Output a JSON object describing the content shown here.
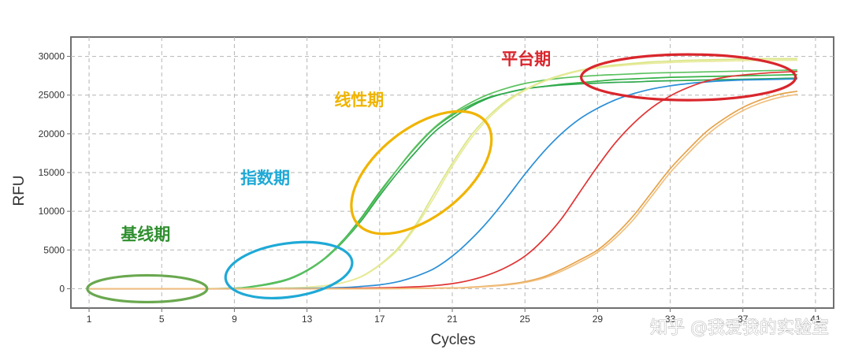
{
  "chart_data": {
    "type": "line",
    "xlabel": "Cycles",
    "ylabel": "RFU",
    "xlim": [
      0,
      42
    ],
    "ylim": [
      -2500,
      32500
    ],
    "x_ticks": [
      1,
      5,
      9,
      13,
      17,
      21,
      25,
      29,
      33,
      37,
      41
    ],
    "y_ticks": [
      0,
      5000,
      10000,
      15000,
      20000,
      25000,
      30000
    ],
    "grid": true,
    "series": [
      {
        "color": "#35b247",
        "x": [
          1,
          3,
          5,
          7,
          9,
          10,
          11,
          12,
          13,
          14,
          15,
          16,
          17,
          18,
          19,
          20,
          21,
          22,
          23,
          24,
          25,
          26,
          27,
          28,
          29,
          30,
          31,
          32,
          33,
          34,
          35,
          36,
          37,
          38,
          39,
          40
        ],
        "y": [
          0,
          0,
          0,
          0,
          50,
          300,
          700,
          1300,
          2400,
          4000,
          6300,
          9200,
          12500,
          15500,
          18300,
          20700,
          22400,
          23700,
          24700,
          25300,
          25800,
          26100,
          26400,
          26600,
          26800,
          27000,
          27100,
          27200,
          27300,
          27350,
          27400,
          27450,
          27500,
          27550,
          27600,
          27650
        ]
      },
      {
        "color": "#2fa84f",
        "x": [
          1,
          3,
          5,
          7,
          9,
          10,
          11,
          12,
          13,
          14,
          15,
          16,
          17,
          18,
          19,
          20,
          21,
          22,
          23,
          24,
          25,
          26,
          27,
          28,
          29,
          30,
          31,
          32,
          33,
          34,
          35,
          36,
          37,
          38,
          39,
          40
        ],
        "y": [
          0,
          0,
          0,
          0,
          40,
          250,
          600,
          1200,
          2300,
          3900,
          6100,
          8800,
          12000,
          15000,
          17700,
          20200,
          22000,
          23500,
          24600,
          25300,
          25800,
          26100,
          26300,
          26450,
          26550,
          26650,
          26700,
          26800,
          26850,
          26900,
          26950,
          27000,
          27050,
          27100,
          27150,
          27200
        ]
      },
      {
        "color": "#5cc25f",
        "x": [
          1,
          3,
          5,
          7,
          9,
          10,
          11,
          12,
          13,
          14,
          15,
          16,
          17,
          18,
          19,
          20,
          21,
          22,
          23,
          24,
          25,
          26,
          27,
          28,
          29,
          30,
          31,
          32,
          33,
          34,
          35,
          36,
          37,
          38,
          39,
          40
        ],
        "y": [
          0,
          0,
          0,
          0,
          40,
          250,
          650,
          1250,
          2350,
          3950,
          6200,
          9000,
          12300,
          15500,
          18400,
          20800,
          22600,
          24000,
          25100,
          25900,
          26500,
          26900,
          27200,
          27400,
          27550,
          27650,
          27750,
          27850,
          27900,
          27950,
          28000,
          28050,
          28100,
          28150,
          28200,
          28250
        ]
      },
      {
        "color": "#d9e686",
        "x": [
          1,
          5,
          9,
          12,
          13,
          14,
          15,
          16,
          17,
          18,
          19,
          20,
          21,
          22,
          23,
          24,
          25,
          26,
          27,
          28,
          29,
          30,
          31,
          32,
          33,
          34,
          35,
          36,
          37,
          38,
          39,
          40
        ],
        "y": [
          0,
          0,
          0,
          100,
          200,
          400,
          800,
          1600,
          3100,
          5200,
          8300,
          12300,
          16200,
          19700,
          22300,
          24300,
          25700,
          26800,
          27600,
          28200,
          28600,
          28900,
          29100,
          29300,
          29400,
          29500,
          29550,
          29600,
          29650,
          29700,
          29700,
          29700
        ]
      },
      {
        "color": "#e9ea9c",
        "x": [
          1,
          5,
          9,
          12,
          13,
          14,
          15,
          16,
          17,
          18,
          19,
          20,
          21,
          22,
          23,
          24,
          25,
          26,
          27,
          28,
          29,
          30,
          31,
          32,
          33,
          34,
          35,
          36,
          37,
          38,
          39,
          40
        ],
        "y": [
          0,
          0,
          0,
          80,
          180,
          380,
          780,
          1550,
          3000,
          5000,
          8000,
          11800,
          15800,
          19300,
          22000,
          24100,
          25600,
          26700,
          27500,
          28100,
          28500,
          28750,
          28950,
          29100,
          29200,
          29300,
          29350,
          29400,
          29450,
          29500,
          29500,
          29500
        ]
      },
      {
        "color": "#2a8fd6",
        "x": [
          1,
          5,
          9,
          13,
          15,
          16,
          17,
          18,
          19,
          20,
          21,
          22,
          23,
          24,
          25,
          26,
          27,
          28,
          29,
          30,
          31,
          32,
          33,
          34,
          35,
          36,
          37,
          38,
          39,
          40
        ],
        "y": [
          0,
          0,
          0,
          50,
          150,
          300,
          500,
          900,
          1600,
          2600,
          4200,
          6300,
          8800,
          11700,
          14800,
          17600,
          20000,
          21900,
          23300,
          24400,
          25200,
          25800,
          26200,
          26500,
          26700,
          26850,
          26950,
          27000,
          27050,
          27100
        ]
      },
      {
        "color": "#e03434",
        "x": [
          1,
          5,
          9,
          13,
          17,
          19,
          20,
          21,
          22,
          23,
          24,
          25,
          26,
          27,
          28,
          29,
          30,
          31,
          32,
          33,
          34,
          35,
          36,
          37,
          38,
          39,
          40
        ],
        "y": [
          0,
          0,
          0,
          0,
          100,
          250,
          400,
          650,
          1100,
          1800,
          2800,
          4200,
          6300,
          9000,
          12400,
          15800,
          18900,
          21400,
          23400,
          24900,
          26000,
          26800,
          27300,
          27600,
          27800,
          27950,
          28050
        ]
      },
      {
        "color": "#e6a24a",
        "x": [
          1,
          5,
          9,
          13,
          17,
          21,
          22,
          23,
          24,
          25,
          26,
          27,
          28,
          29,
          30,
          31,
          32,
          33,
          34,
          35,
          36,
          37,
          38,
          39,
          40
        ],
        "y": [
          0,
          0,
          0,
          0,
          0,
          100,
          200,
          350,
          550,
          900,
          1500,
          2500,
          3700,
          5000,
          7000,
          9500,
          12500,
          15500,
          18000,
          20300,
          22000,
          23400,
          24400,
          25100,
          25500
        ]
      },
      {
        "color": "#f0bf7e",
        "x": [
          1,
          5,
          9,
          13,
          17,
          21,
          22,
          23,
          24,
          25,
          26,
          27,
          28,
          29,
          30,
          31,
          32,
          33,
          34,
          35,
          36,
          37,
          38,
          39,
          40
        ],
        "y": [
          0,
          0,
          0,
          0,
          0,
          80,
          160,
          300,
          480,
          800,
          1350,
          2250,
          3400,
          4700,
          6600,
          9000,
          12000,
          15000,
          17500,
          19800,
          21600,
          23000,
          24000,
          24700,
          25100
        ]
      }
    ],
    "annotations": [
      {
        "label": "基线期",
        "color": "#2f8f2f",
        "ellipse_color": "#6aa84f",
        "x": 4.2,
        "y": 0
      },
      {
        "label": "指数期",
        "color": "#1fa9d6",
        "ellipse_color": "#1fa9d6",
        "x": 12,
        "y": 2400
      },
      {
        "label": "线性期",
        "color": "#f0b400",
        "ellipse_color": "#f0b400",
        "x": 19.3,
        "y": 15000
      },
      {
        "label": "平台期",
        "color": "#d9262c",
        "ellipse_color": "#d9262c",
        "x": 34,
        "y": 27300
      }
    ]
  },
  "watermark": "知乎 @我爱我的实验室"
}
